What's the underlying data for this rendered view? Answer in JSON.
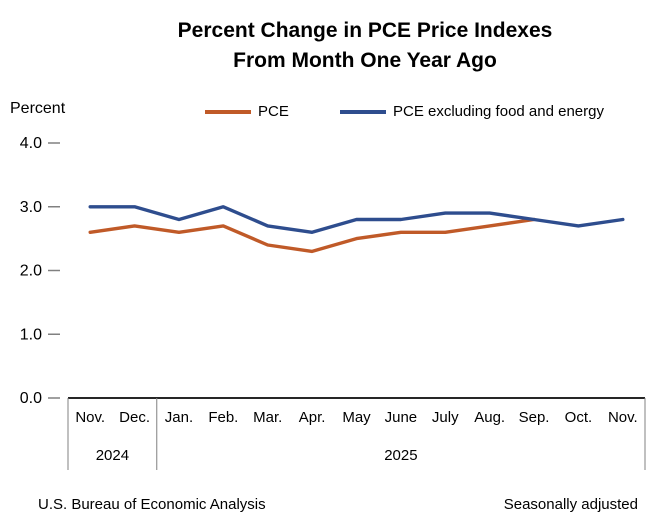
{
  "title": {
    "line1": "Percent Change in PCE Price Indexes",
    "line2": "From Month One Year Ago"
  },
  "axis_label": "Percent",
  "legend": [
    {
      "label": "PCE",
      "color": "#C05A28"
    },
    {
      "label": "PCE excluding food and energy",
      "color": "#2E4D8E"
    }
  ],
  "footer": {
    "left": "U.S. Bureau of Economic Analysis",
    "right": "Seasonally adjusted"
  },
  "chart_data": {
    "type": "line",
    "title": "Percent Change in PCE Price Indexes From Month One Year Ago",
    "ylabel": "Percent",
    "ylim": [
      0,
      4
    ],
    "yticks": [
      0.0,
      1.0,
      2.0,
      3.0,
      4.0
    ],
    "grid": false,
    "legend_position": "top",
    "categories": [
      "Nov.",
      "Dec.",
      "Jan.",
      "Feb.",
      "Mar.",
      "Apr.",
      "May",
      "June",
      "July",
      "Aug.",
      "Sep.",
      "Oct.",
      "Nov."
    ],
    "year_groups": [
      {
        "label": "2024",
        "span": 2
      },
      {
        "label": "2025",
        "span": 11
      }
    ],
    "series": [
      {
        "name": "PCE",
        "color": "#C05A28",
        "values": [
          2.6,
          2.7,
          2.6,
          2.7,
          2.4,
          2.3,
          2.5,
          2.6,
          2.6,
          2.7,
          2.8,
          null,
          null
        ]
      },
      {
        "name": "PCE excluding food and energy",
        "color": "#2E4D8E",
        "values": [
          3.0,
          3.0,
          2.8,
          3.0,
          2.7,
          2.6,
          2.8,
          2.8,
          2.9,
          2.9,
          2.8,
          2.7,
          2.8
        ]
      }
    ]
  }
}
